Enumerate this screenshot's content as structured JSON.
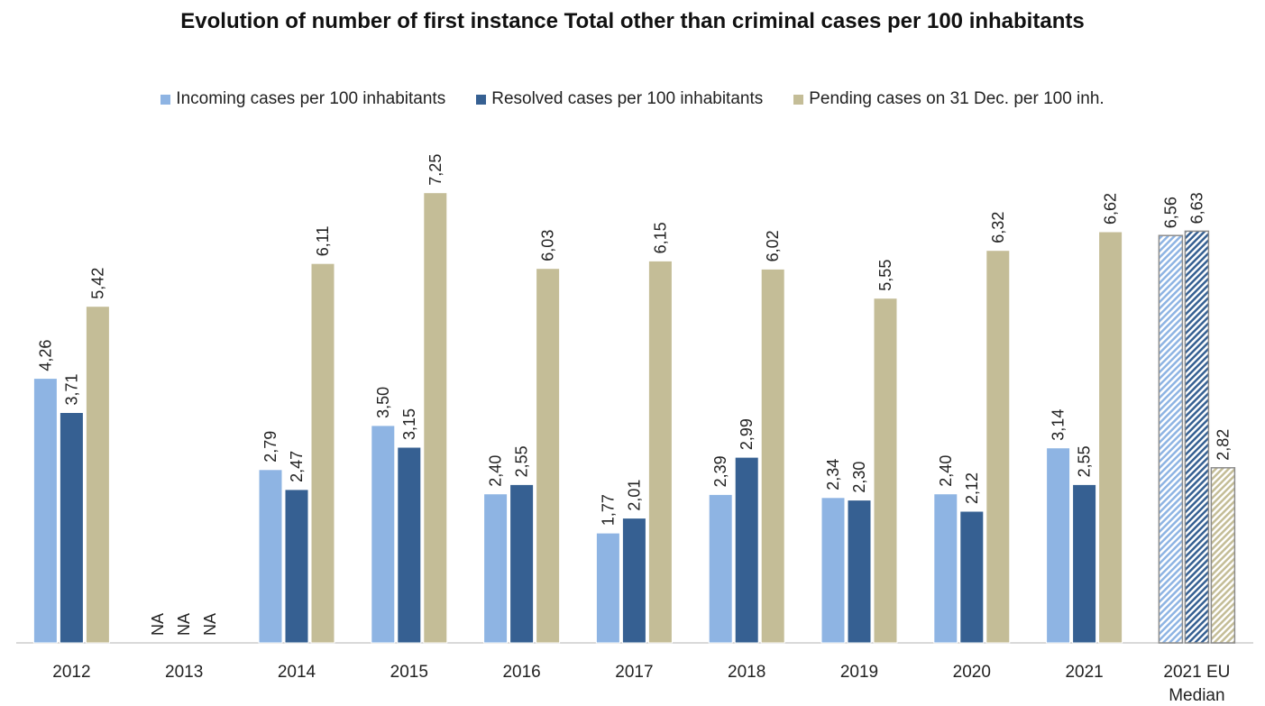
{
  "chart_data": {
    "type": "bar",
    "title": "Evolution of number of first instance Total other than criminal cases per 100 inhabitants",
    "categories": [
      [
        "2012"
      ],
      [
        "2013"
      ],
      [
        "2014"
      ],
      [
        "2015"
      ],
      [
        "2016"
      ],
      [
        "2017"
      ],
      [
        "2018"
      ],
      [
        "2019"
      ],
      [
        "2020"
      ],
      [
        "2021"
      ],
      [
        "2021 EU",
        "Median"
      ]
    ],
    "series": [
      {
        "name": "Incoming cases per 100 inhabitants",
        "color": "#8eb4e3",
        "values": [
          4.26,
          null,
          2.79,
          3.5,
          2.4,
          1.77,
          2.39,
          2.34,
          2.4,
          3.14,
          6.56
        ],
        "labels": [
          "4,26",
          "NA",
          "2,79",
          "3,50",
          "2,40",
          "1,77",
          "2,39",
          "2,34",
          "2,40",
          "3,14",
          "6,56"
        ]
      },
      {
        "name": "Resolved cases per 100 inhabitants",
        "color": "#366092",
        "values": [
          3.71,
          null,
          2.47,
          3.15,
          2.55,
          2.01,
          2.99,
          2.3,
          2.12,
          2.55,
          6.63
        ],
        "labels": [
          "3,71",
          "NA",
          "2,47",
          "3,15",
          "2,55",
          "2,01",
          "2,99",
          "2,30",
          "2,12",
          "2,55",
          "6,63"
        ]
      },
      {
        "name": "Pending cases on 31 Dec. per 100 inh.",
        "color": "#c4bd97",
        "values": [
          5.42,
          null,
          6.11,
          7.25,
          6.03,
          6.15,
          6.02,
          5.55,
          6.32,
          6.62,
          2.82
        ],
        "labels": [
          "5,42",
          "NA",
          "6,11",
          "7,25",
          "6,03",
          "6,15",
          "6,02",
          "5,55",
          "6,32",
          "6,62",
          "2,82"
        ]
      }
    ],
    "hatched_category": "2021 EU Median",
    "ylim": [
      0,
      8
    ],
    "grid": false,
    "legend": "top",
    "xlabel": "",
    "ylabel": ""
  }
}
